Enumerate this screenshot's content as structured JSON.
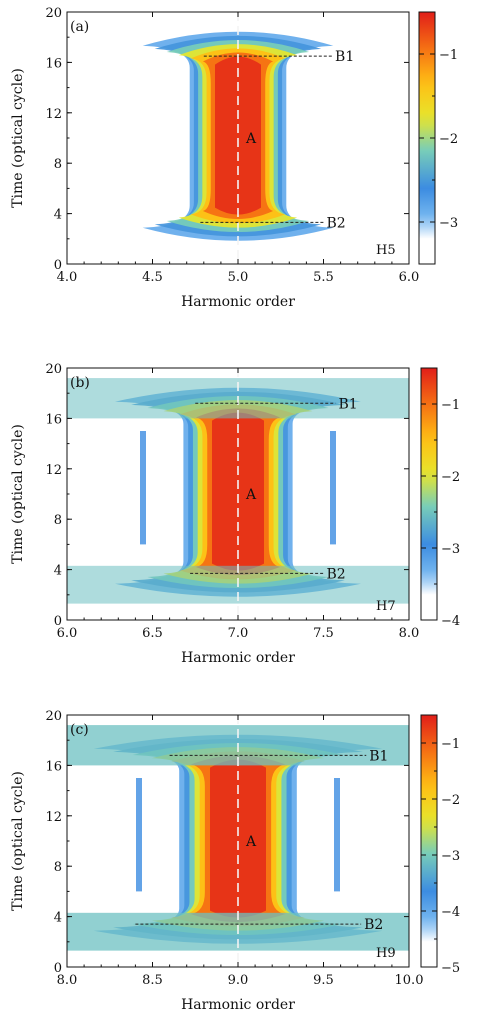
{
  "chart_data": [
    {
      "type": "heatmap",
      "panel_label": "(a)",
      "harmonic_label": "H5",
      "xlabel": "Harmonic order",
      "ylabel": "Time (optical cycle)",
      "xlim": [
        4.0,
        6.0
      ],
      "ylim": [
        0,
        20
      ],
      "xticks": [
        "4.0",
        "4.5",
        "5.0",
        "5.5",
        "6.0"
      ],
      "yticks": [
        "0",
        "4",
        "8",
        "12",
        "16",
        "20"
      ],
      "colorbar": {
        "range": [
          -3.5,
          -0.5
        ],
        "ticks": [
          "−1",
          "−2",
          "−3"
        ],
        "tick_values": [
          -1,
          -2,
          -3
        ]
      },
      "region_label": "A",
      "annotations": [
        {
          "label": "B1",
          "time": 16.5,
          "x_from": 4.8,
          "x_to": 5.55
        },
        {
          "label": "B2",
          "time": 3.3,
          "x_from": 4.78,
          "x_to": 5.5
        }
      ],
      "vertical_dashed_line_at": 5.0
    },
    {
      "type": "heatmap",
      "panel_label": "(b)",
      "harmonic_label": "H7",
      "xlabel": "Harmonic order",
      "ylabel": "Time (optical cycle)",
      "xlim": [
        6.0,
        8.0
      ],
      "ylim": [
        0,
        20
      ],
      "xticks": [
        "6.0",
        "6.5",
        "7.0",
        "7.5",
        "8.0"
      ],
      "yticks": [
        "0",
        "4",
        "8",
        "12",
        "16",
        "20"
      ],
      "colorbar": {
        "range": [
          -4.0,
          -0.5
        ],
        "ticks": [
          "−1",
          "−2",
          "−3",
          "−4"
        ],
        "tick_values": [
          -1,
          -2,
          -3,
          -4
        ]
      },
      "region_label": "A",
      "annotations": [
        {
          "label": "B1",
          "time": 17.2,
          "x_from": 6.75,
          "x_to": 7.57
        },
        {
          "label": "B2",
          "time": 3.7,
          "x_from": 6.72,
          "x_to": 7.5
        }
      ],
      "vertical_dashed_line_at": 7.0
    },
    {
      "type": "heatmap",
      "panel_label": "(c)",
      "harmonic_label": "H9",
      "xlabel": "Harmonic order",
      "ylabel": "Time (optical cycle)",
      "xlim": [
        8.0,
        10.0
      ],
      "ylim": [
        0,
        20
      ],
      "xticks": [
        "8.0",
        "8.5",
        "9.0",
        "9.5",
        "10.0"
      ],
      "yticks": [
        "0",
        "4",
        "8",
        "12",
        "16",
        "20"
      ],
      "colorbar": {
        "range": [
          -5.0,
          -0.5
        ],
        "ticks": [
          "−1",
          "−2",
          "−3",
          "−4",
          "−5"
        ],
        "tick_values": [
          -1,
          -2,
          -3,
          -4,
          -5
        ]
      },
      "region_label": "A",
      "annotations": [
        {
          "label": "B1",
          "time": 16.8,
          "x_from": 8.6,
          "x_to": 9.75
        },
        {
          "label": "B2",
          "time": 3.4,
          "x_from": 8.4,
          "x_to": 9.72
        }
      ],
      "vertical_dashed_line_at": 9.0
    }
  ]
}
